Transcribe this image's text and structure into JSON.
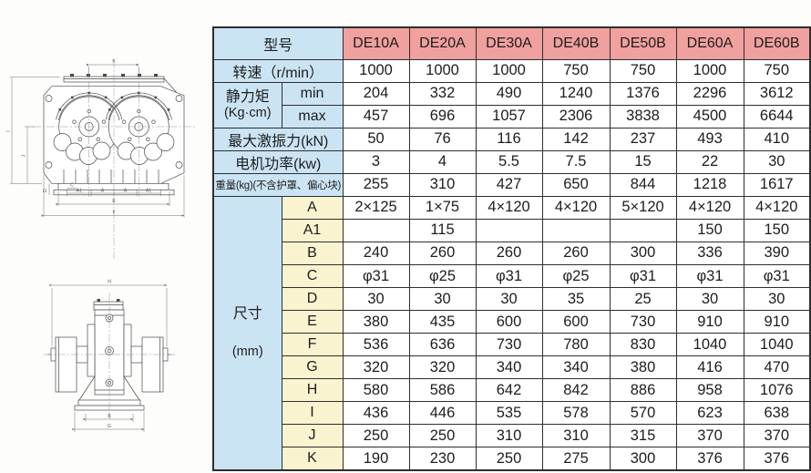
{
  "colors": {
    "pink": "#f0a09e",
    "blue": "#cbe4f4",
    "cream": "#faf3d0",
    "border": "#2e2e2e",
    "text": "#1d1d1d",
    "line": "#4a4a4a",
    "dim": "#6e6e6e"
  },
  "table": {
    "header": {
      "label": "型号",
      "models": [
        "DE10A",
        "DE20A",
        "DE30A",
        "DE40B",
        "DE50B",
        "DE60A",
        "DE60B"
      ]
    },
    "rows": [
      {
        "kind": "full",
        "label": "转速（r/min）",
        "values": [
          "1000",
          "1000",
          "1000",
          "750",
          "750",
          "1000",
          "750"
        ]
      },
      {
        "kind": "group",
        "group_line1": "静力矩",
        "group_line2": "(Kg·cm)",
        "rowspan": 2,
        "sub": "min",
        "sub_class": "blue",
        "values": [
          "204",
          "332",
          "490",
          "1240",
          "1376",
          "2296",
          "3612"
        ]
      },
      {
        "kind": "sub",
        "sub": "max",
        "sub_class": "blue",
        "values": [
          "457",
          "696",
          "1057",
          "2306",
          "3838",
          "4500",
          "6644"
        ]
      },
      {
        "kind": "full",
        "label": "最大激振力(kN)",
        "values": [
          "50",
          "76",
          "116",
          "142",
          "237",
          "493",
          "410"
        ]
      },
      {
        "kind": "full",
        "label": "电机功率(kw)",
        "values": [
          "3",
          "4",
          "5.5",
          "7.5",
          "15",
          "22",
          "30"
        ]
      },
      {
        "kind": "full",
        "label": "重量(kg)(不含护罩、偏心块)",
        "small": true,
        "values": [
          "255",
          "310",
          "427",
          "650",
          "844",
          "1218",
          "1617"
        ]
      },
      {
        "kind": "group",
        "group_line1": "尺寸",
        "group_line2": "(mm)",
        "rowspan": 12,
        "sub": "A",
        "sub_class": "cream",
        "values": [
          "2×125",
          "1×75",
          "4×120",
          "4×120",
          "5×120",
          "4×120",
          "4×120"
        ]
      },
      {
        "kind": "sub",
        "sub": "A1",
        "sub_class": "cream",
        "values": [
          "",
          "115",
          "",
          "",
          "",
          "150",
          "150"
        ]
      },
      {
        "kind": "sub",
        "sub": "B",
        "sub_class": "cream",
        "values": [
          "240",
          "260",
          "260",
          "260",
          "300",
          "336",
          "390"
        ]
      },
      {
        "kind": "sub",
        "sub": "C",
        "sub_class": "cream",
        "values": [
          "φ31",
          "φ25",
          "φ31",
          "φ25",
          "φ31",
          "φ31",
          "φ31"
        ]
      },
      {
        "kind": "sub",
        "sub": "D",
        "sub_class": "cream",
        "values": [
          "30",
          "30",
          "30",
          "35",
          "25",
          "30",
          "30"
        ]
      },
      {
        "kind": "sub",
        "sub": "E",
        "sub_class": "cream",
        "values": [
          "380",
          "435",
          "600",
          "600",
          "730",
          "910",
          "910"
        ]
      },
      {
        "kind": "sub",
        "sub": "F",
        "sub_class": "cream",
        "values": [
          "536",
          "636",
          "730",
          "780",
          "830",
          "1040",
          "1040"
        ]
      },
      {
        "kind": "sub",
        "sub": "G",
        "sub_class": "cream",
        "values": [
          "320",
          "320",
          "340",
          "340",
          "380",
          "416",
          "470"
        ]
      },
      {
        "kind": "sub",
        "sub": "H",
        "sub_class": "cream",
        "values": [
          "580",
          "586",
          "642",
          "842",
          "886",
          "958",
          "1076"
        ]
      },
      {
        "kind": "sub",
        "sub": "I",
        "sub_class": "cream",
        "values": [
          "436",
          "446",
          "535",
          "578",
          "570",
          "623",
          "638"
        ]
      },
      {
        "kind": "sub",
        "sub": "J",
        "sub_class": "cream",
        "values": [
          "250",
          "250",
          "310",
          "310",
          "315",
          "370",
          "370"
        ]
      },
      {
        "kind": "sub",
        "sub": "K",
        "sub_class": "cream",
        "values": [
          "190",
          "230",
          "250",
          "275",
          "300",
          "376",
          "376"
        ]
      }
    ]
  },
  "drawings": {
    "front": {
      "top": "K",
      "left_outer": "I",
      "left_inner": "J",
      "d": "D",
      "c": "C",
      "a1_left": "A1",
      "a_left": "A",
      "a_right": "A",
      "a1_right": "A1",
      "e": "E",
      "f": "F"
    },
    "side": {
      "top": "H",
      "inner": "B",
      "outer": "G"
    }
  }
}
